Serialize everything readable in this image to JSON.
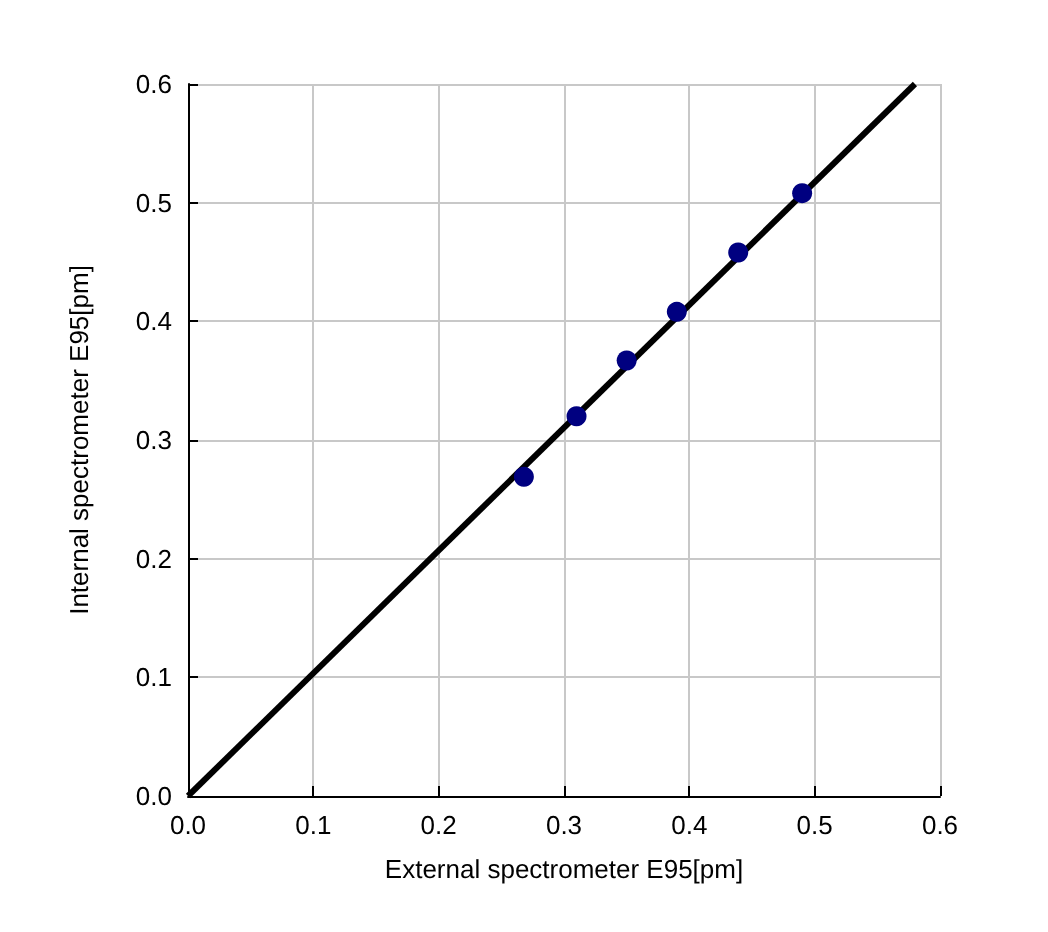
{
  "chart_data": {
    "type": "scatter",
    "xlabel": "External spectrometer E95[pm]",
    "ylabel": "Internal spectrometer E95[pm]",
    "x": [
      0.268,
      0.31,
      0.35,
      0.39,
      0.439,
      0.49
    ],
    "series": [
      {
        "color": "#000080",
        "values": [
          0.269,
          0.32,
          0.367,
          0.408,
          0.458,
          0.508
        ]
      },
      {
        "type": "line",
        "color": "#000000",
        "x": [
          0,
          0.58
        ],
        "values": [
          0,
          0.6
        ],
        "marker": "none",
        "line_style": "solid"
      }
    ],
    "xlim": [
      0,
      0.6
    ],
    "ylim": [
      0,
      0.6
    ],
    "xticks": [
      {
        "value": 0,
        "label": "0.0"
      },
      0.1,
      0.2,
      0.3,
      0.4,
      0.5,
      0.6
    ],
    "yticks": [
      {
        "value": 0,
        "label": "0.0"
      },
      0.1,
      0.2,
      0.3,
      0.4,
      0.5,
      0.6
    ],
    "grid": true,
    "marker": "circle"
  }
}
